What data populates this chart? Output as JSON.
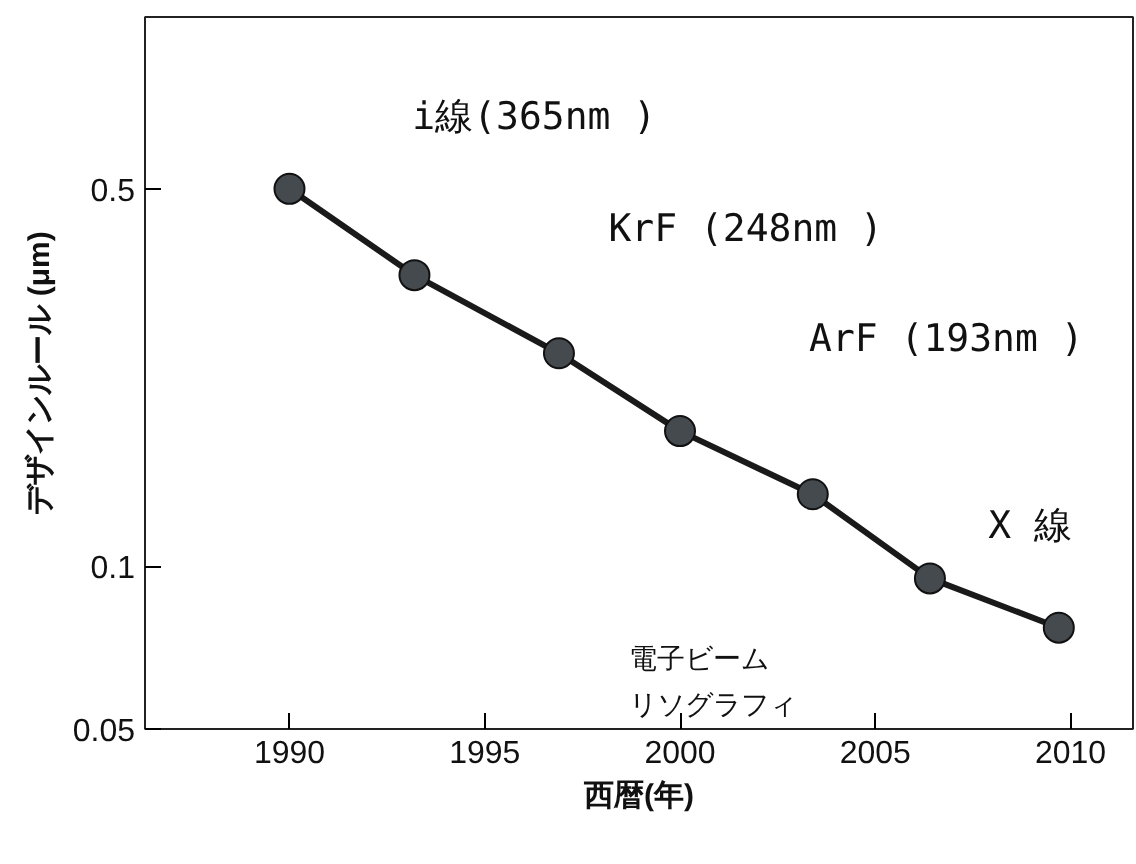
{
  "chart_data": {
    "type": "line",
    "xlabel": "西暦(年)",
    "ylabel": "デザインルール (μm)",
    "x": [
      1990.0,
      1993.2,
      1996.9,
      2000.0,
      2003.4,
      2006.4,
      2009.7
    ],
    "values": [
      0.5,
      0.346,
      0.248,
      0.178,
      0.136,
      0.095,
      0.077
    ],
    "color": "#1a1a1a",
    "marker": "circle",
    "line_style": "solid",
    "log": true,
    "grid": false,
    "xlim": [
      1986.3,
      2011.6
    ],
    "ylim": [
      0.05,
      1.04
    ],
    "xticks": [
      1990,
      1995,
      2000,
      2005,
      2010
    ],
    "yticks": [
      0.05,
      0.1,
      0.5
    ],
    "annotations": [
      "i線(365nm )",
      "KrF (248nm )",
      "ArF (193nm )",
      "X 線",
      "電子ビーム",
      "リソグラフィ"
    ]
  }
}
